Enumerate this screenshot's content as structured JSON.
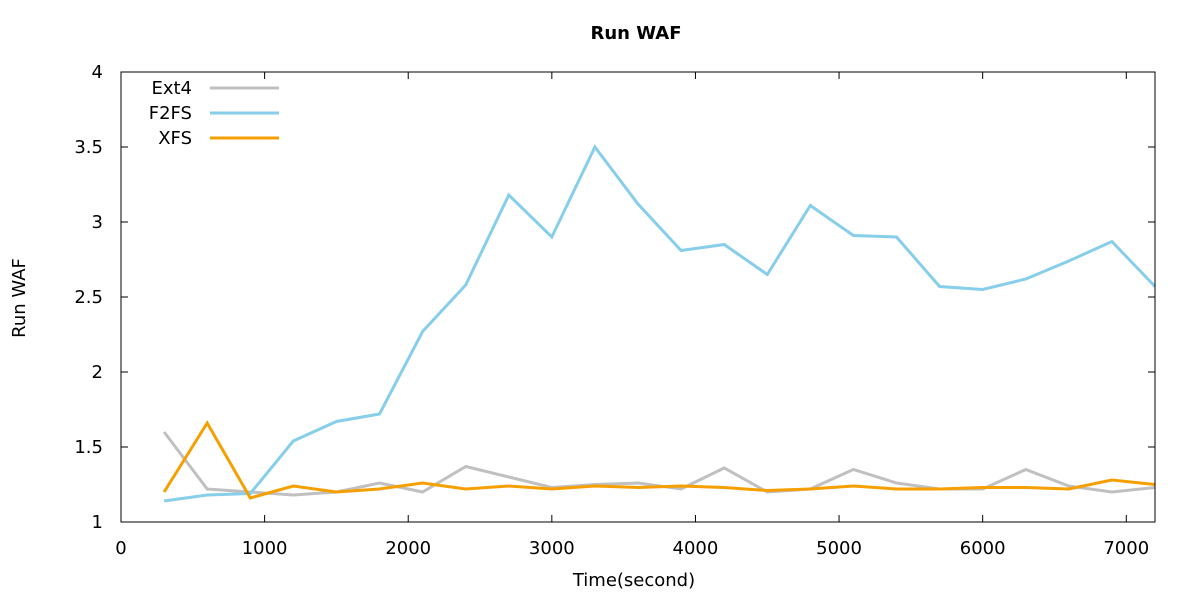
{
  "chart_data": {
    "type": "line",
    "title": "Run WAF",
    "xlabel": "Time(second)",
    "ylabel": "Run WAF",
    "xlim": [
      0,
      7200
    ],
    "ylim": [
      1,
      4
    ],
    "xticks": [
      0,
      1000,
      2000,
      3000,
      4000,
      5000,
      6000,
      7000
    ],
    "yticks": [
      1,
      1.5,
      2,
      2.5,
      3,
      3.5,
      4
    ],
    "legend_position": "top-left",
    "grid": false,
    "x": [
      300,
      600,
      900,
      1200,
      1500,
      1800,
      2100,
      2400,
      2700,
      3000,
      3300,
      3600,
      3900,
      4200,
      4500,
      4800,
      5100,
      5400,
      5700,
      6000,
      6300,
      6600,
      6900,
      7200
    ],
    "series": [
      {
        "name": "Ext4",
        "color": "#c0c0c0",
        "values": [
          1.6,
          1.22,
          1.2,
          1.18,
          1.2,
          1.26,
          1.2,
          1.37,
          1.3,
          1.23,
          1.25,
          1.26,
          1.22,
          1.36,
          1.2,
          1.22,
          1.35,
          1.26,
          1.22,
          1.22,
          1.35,
          1.24,
          1.2,
          1.23
        ]
      },
      {
        "name": "F2FS",
        "color": "#87ceeb",
        "values": [
          1.14,
          1.18,
          1.19,
          1.54,
          1.67,
          1.72,
          2.27,
          2.58,
          3.18,
          2.9,
          3.5,
          3.12,
          2.81,
          2.85,
          2.65,
          3.11,
          2.91,
          2.9,
          2.57,
          2.55,
          2.62,
          2.74,
          2.87,
          2.57
        ]
      },
      {
        "name": "XFS",
        "color": "#f5a000",
        "values": [
          1.2,
          1.66,
          1.16,
          1.24,
          1.2,
          1.22,
          1.26,
          1.22,
          1.24,
          1.22,
          1.24,
          1.23,
          1.24,
          1.23,
          1.21,
          1.22,
          1.24,
          1.22,
          1.22,
          1.23,
          1.23,
          1.22,
          1.28,
          1.25
        ]
      }
    ]
  }
}
